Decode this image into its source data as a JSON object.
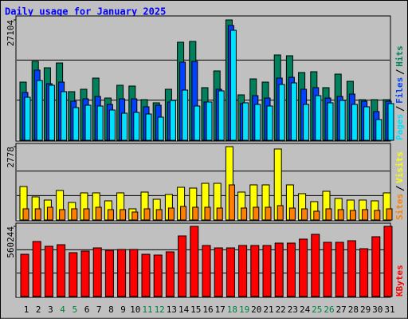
{
  "chart_data": [
    {
      "type": "bar",
      "title": "Daily usage for January 2025",
      "ylim": [
        0,
        27104
      ],
      "yticks": [
        27104
      ],
      "series": [
        {
          "name": "Hits",
          "color": "#00805c",
          "values": [
            13100,
            17770,
            16330,
            17410,
            10950,
            11490,
            14000,
            9510,
            12390,
            12210,
            9150,
            8440,
            11490,
            22080,
            22260,
            11850,
            15620,
            27104,
            10230,
            13820,
            13100,
            19210,
            19030,
            15260,
            15440,
            11850,
            14900,
            13280,
            9150,
            9150,
            9150
          ]
        },
        {
          "name": "Files",
          "color": "#0040ff",
          "values": [
            10770,
            15800,
            12740,
            13100,
            8800,
            9330,
            9870,
            8080,
            9330,
            9330,
            7540,
            7900,
            8620,
            17590,
            17770,
            8620,
            11490,
            25850,
            8260,
            10050,
            9510,
            14000,
            14180,
            11490,
            11850,
            9510,
            9870,
            10410,
            8800,
            6460,
            8800
          ]
        },
        {
          "name": "Pages",
          "color": "#00e0ff",
          "values": [
            9690,
            13460,
            12390,
            10950,
            7360,
            7900,
            7720,
            6820,
            6100,
            6280,
            5920,
            5210,
            8980,
            11310,
            7720,
            8620,
            11130,
            24770,
            8440,
            8080,
            7720,
            12570,
            12920,
            8080,
            10050,
            8440,
            8980,
            8080,
            7540,
            4670,
            8260
          ]
        }
      ]
    },
    {
      "type": "bar",
      "ylim": [
        0,
        2778
      ],
      "yticks": [
        2778
      ],
      "series": [
        {
          "name": "Visits",
          "color": "#ffff00",
          "values": [
            1268,
            876,
            755,
            1117,
            664,
            1027,
            1027,
            725,
            1027,
            423,
            1057,
            785,
            966,
            1238,
            1208,
            1389,
            1389,
            2778,
            1057,
            1329,
            1329,
            2688,
            1329,
            997,
            695,
            1087,
            815,
            755,
            755,
            725,
            1027
          ]
        },
        {
          "name": "Sites",
          "color": "#ff8000",
          "values": [
            423,
            423,
            483,
            393,
            423,
            423,
            483,
            393,
            393,
            302,
            423,
            393,
            453,
            513,
            483,
            483,
            453,
            1329,
            453,
            483,
            483,
            544,
            453,
            423,
            332,
            423,
            393,
            362,
            393,
            362,
            423
          ]
        }
      ]
    },
    {
      "type": "bar",
      "ylim": [
        0,
        560244
      ],
      "yticks": [
        560244
      ],
      "categories": [
        "1",
        "2",
        "3",
        "4",
        "5",
        "6",
        "7",
        "8",
        "9",
        "10",
        "11",
        "12",
        "13",
        "14",
        "15",
        "16",
        "17",
        "18",
        "19",
        "20",
        "21",
        "22",
        "23",
        "24",
        "25",
        "26",
        "27",
        "28",
        "29",
        "30",
        "31"
      ],
      "category_colors": [
        "#000000",
        "#000000",
        "#000000",
        "#008040",
        "#008040",
        "#000000",
        "#000000",
        "#000000",
        "#000000",
        "#000000",
        "#008040",
        "#008040",
        "#000000",
        "#000000",
        "#000000",
        "#000000",
        "#000000",
        "#008040",
        "#008040",
        "#000000",
        "#000000",
        "#000000",
        "#000000",
        "#000000",
        "#008040",
        "#008040",
        "#000000",
        "#000000",
        "#000000",
        "#000000",
        "#000000"
      ],
      "series": [
        {
          "name": "KBytes",
          "color": "#ff0000",
          "values": [
            337400,
            439250,
            401060,
            413790,
            350130,
            362860,
            388330,
            369230,
            375590,
            375590,
            337400,
            331030,
            356500,
            483820,
            560244,
            407420,
            388330,
            388330,
            407420,
            407420,
            407420,
            426520,
            426520,
            458350,
            496550,
            432890,
            432890,
            445620,
            381960,
            477450,
            560244
          ]
        }
      ]
    }
  ]
}
